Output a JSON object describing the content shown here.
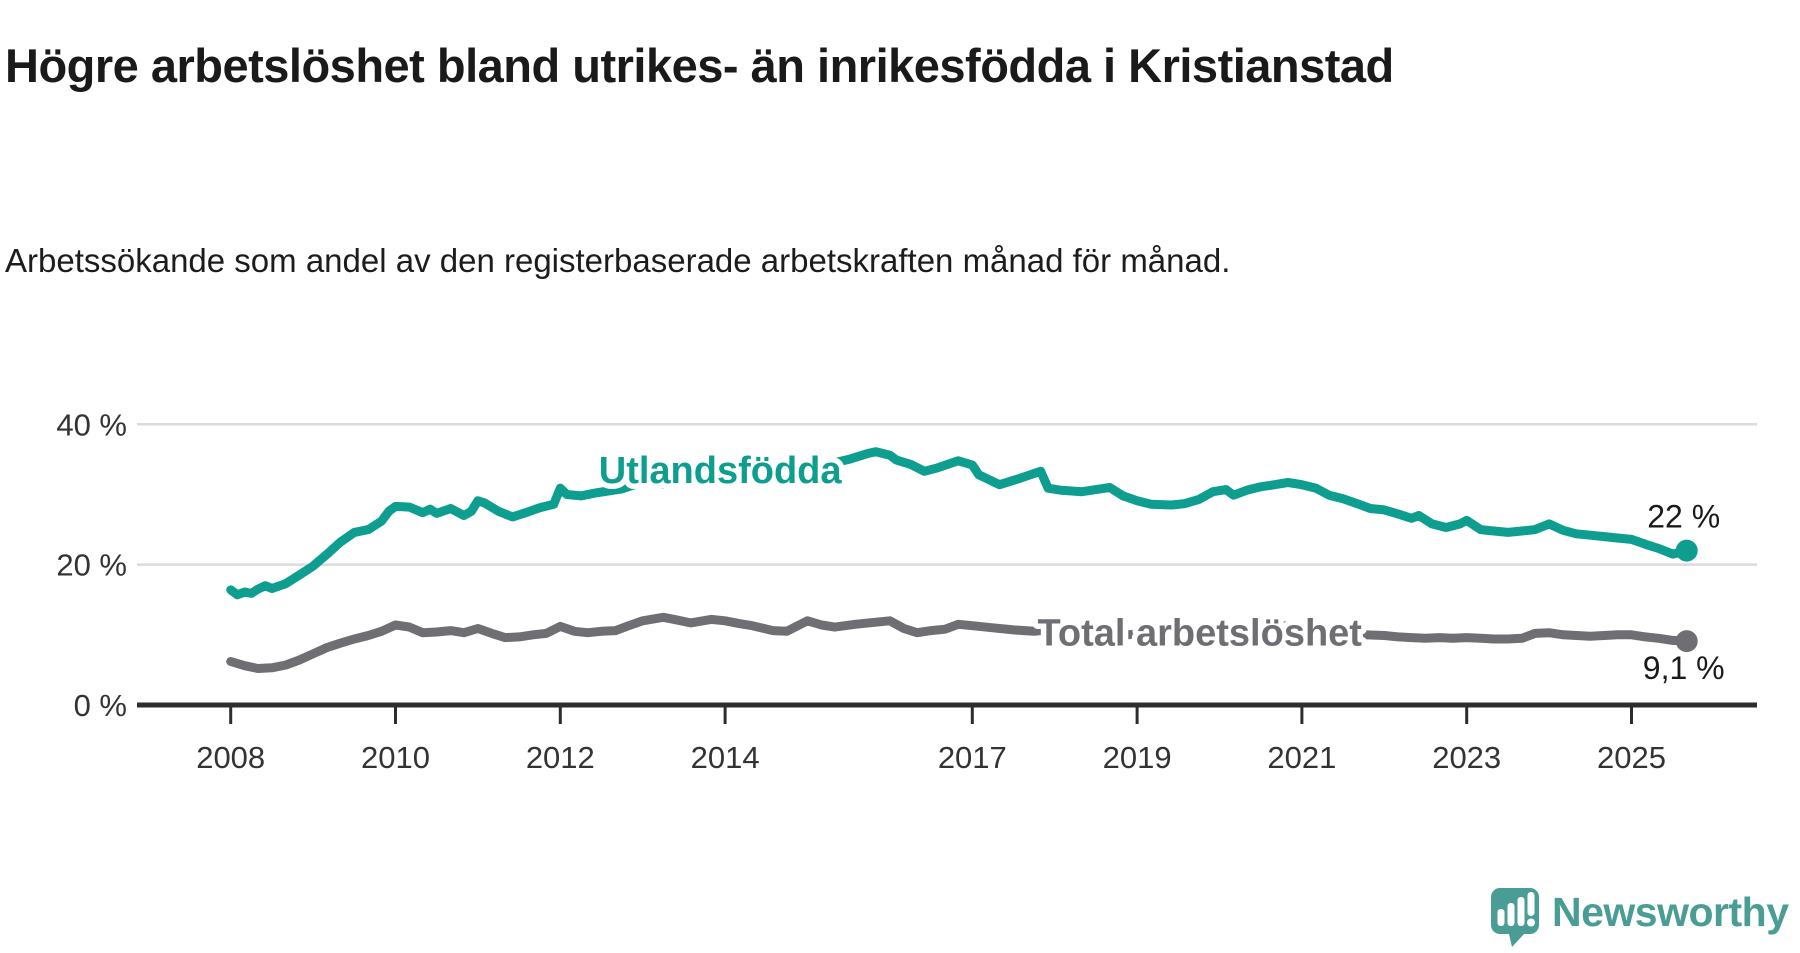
{
  "title": "Högre arbetslöshet bland utrikes- än inrikesfödda i Kristianstad",
  "subtitle": "Arbetssökande som andel av den registerbaserade arbetskraften månad för månad.",
  "colors": {
    "series_foreign": "#0D9E8F",
    "series_total": "#6F6F73",
    "grid": "#DBDBDB",
    "axis": "#2D2D2D",
    "tick_text": "#333333",
    "end_label_text": "#1a1a1a",
    "logo": "#4A9D95"
  },
  "chart_data": {
    "type": "line",
    "title": "Högre arbetslöshet bland utrikes- än inrikesfödda i Kristianstad",
    "subtitle": "Arbetssökande som andel av den registerbaserade arbetskraften månad för månad.",
    "xlabel": "",
    "ylabel": "",
    "unit": "%",
    "grid": "horizontal",
    "legend_position": "inline-labels",
    "xlim": [
      2007.9,
      2026.1
    ],
    "ylim": [
      0,
      43
    ],
    "x_ticks": [
      {
        "v": 2008,
        "label": "2008"
      },
      {
        "v": 2010,
        "label": "2010"
      },
      {
        "v": 2012,
        "label": "2012"
      },
      {
        "v": 2014,
        "label": "2014"
      },
      {
        "v": 2017,
        "label": "2017"
      },
      {
        "v": 2019,
        "label": "2019"
      },
      {
        "v": 2021,
        "label": "2021"
      },
      {
        "v": 2023,
        "label": "2023"
      },
      {
        "v": 2025,
        "label": "2025"
      }
    ],
    "y_ticks": [
      {
        "v": 40,
        "label": "40 %"
      },
      {
        "v": 20,
        "label": "20 %"
      },
      {
        "v": 0,
        "label": "0 %"
      }
    ],
    "series": [
      {
        "name": "Utlandsfödda",
        "color": "#0D9E8F",
        "end_label": "22 %",
        "end_value": 22,
        "x": [
          2008.0,
          2008.08,
          2008.17,
          2008.25,
          2008.33,
          2008.42,
          2008.5,
          2008.67,
          2008.83,
          2009.0,
          2009.17,
          2009.33,
          2009.5,
          2009.67,
          2009.83,
          2009.92,
          2010.0,
          2010.17,
          2010.33,
          2010.42,
          2010.5,
          2010.67,
          2010.83,
          2010.92,
          2011.0,
          2011.08,
          2011.25,
          2011.42,
          2011.58,
          2011.75,
          2011.92,
          2012.0,
          2012.08,
          2012.25,
          2012.42,
          2012.58,
          2012.75,
          2013.0,
          2013.25,
          2013.5,
          2013.75,
          2014.0,
          2014.25,
          2014.5,
          2014.75,
          2015.0,
          2015.25,
          2015.5,
          2015.75,
          2015.83,
          2016.0,
          2016.08,
          2016.25,
          2016.42,
          2016.58,
          2016.83,
          2017.0,
          2017.08,
          2017.33,
          2017.58,
          2017.83,
          2017.92,
          2018.08,
          2018.33,
          2018.5,
          2018.67,
          2018.83,
          2019.0,
          2019.17,
          2019.42,
          2019.58,
          2019.75,
          2019.92,
          2020.08,
          2020.17,
          2020.33,
          2020.5,
          2020.67,
          2020.83,
          2021.0,
          2021.17,
          2021.33,
          2021.5,
          2021.67,
          2021.83,
          2022.0,
          2022.17,
          2022.33,
          2022.42,
          2022.58,
          2022.75,
          2022.92,
          2023.0,
          2023.17,
          2023.33,
          2023.5,
          2023.67,
          2023.83,
          2024.0,
          2024.17,
          2024.33,
          2024.5,
          2024.67,
          2024.83,
          2025.0,
          2025.17,
          2025.33,
          2025.5,
          2025.67
        ],
        "y": [
          16.4,
          15.7,
          16.1,
          15.9,
          16.5,
          17.0,
          16.6,
          17.3,
          18.5,
          19.8,
          21.5,
          23.2,
          24.6,
          25.0,
          26.2,
          27.6,
          28.3,
          28.2,
          27.4,
          27.9,
          27.3,
          28.0,
          27.0,
          27.6,
          29.1,
          28.8,
          27.6,
          26.8,
          27.4,
          28.1,
          28.6,
          30.9,
          30.0,
          29.8,
          30.2,
          30.5,
          30.8,
          31.8,
          31.5,
          32.2,
          32.7,
          33.6,
          33.1,
          33.4,
          33.9,
          34.6,
          34.3,
          35.0,
          35.9,
          36.1,
          35.6,
          34.9,
          34.3,
          33.3,
          33.8,
          34.8,
          34.2,
          32.8,
          31.4,
          32.3,
          33.3,
          30.9,
          30.6,
          30.4,
          30.7,
          31.0,
          29.8,
          29.1,
          28.6,
          28.5,
          28.7,
          29.3,
          30.4,
          30.7,
          29.9,
          30.6,
          31.1,
          31.4,
          31.7,
          31.4,
          30.9,
          29.9,
          29.4,
          28.7,
          28.0,
          27.8,
          27.2,
          26.6,
          27.0,
          25.8,
          25.3,
          25.8,
          26.3,
          25.0,
          24.8,
          24.6,
          24.8,
          25.0,
          25.8,
          24.9,
          24.4,
          24.2,
          24.0,
          23.8,
          23.6,
          22.9,
          22.3,
          21.5,
          22.0
        ]
      },
      {
        "name": "Total arbetslöshet",
        "color": "#6F6F73",
        "end_label": "9,1 %",
        "end_value": 9.1,
        "x": [
          2008.0,
          2008.17,
          2008.33,
          2008.5,
          2008.67,
          2008.83,
          2009.0,
          2009.17,
          2009.33,
          2009.5,
          2009.67,
          2009.83,
          2010.0,
          2010.17,
          2010.33,
          2010.5,
          2010.67,
          2010.83,
          2011.0,
          2011.17,
          2011.33,
          2011.5,
          2011.67,
          2011.83,
          2012.0,
          2012.17,
          2012.33,
          2012.5,
          2012.67,
          2012.83,
          2013.0,
          2013.25,
          2013.42,
          2013.58,
          2013.83,
          2014.0,
          2014.17,
          2014.33,
          2014.58,
          2014.75,
          2015.0,
          2015.17,
          2015.33,
          2015.58,
          2015.83,
          2016.0,
          2016.17,
          2016.33,
          2016.5,
          2016.67,
          2016.83,
          2017.0,
          2017.25,
          2017.5,
          2017.75,
          2018.0,
          2018.25,
          2018.5,
          2018.75,
          2019.0,
          2019.25,
          2019.5,
          2019.75,
          2020.0,
          2020.25,
          2020.5,
          2020.75,
          2021.0,
          2021.25,
          2021.5,
          2021.75,
          2022.0,
          2022.17,
          2022.33,
          2022.5,
          2022.67,
          2022.83,
          2023.0,
          2023.17,
          2023.33,
          2023.5,
          2023.67,
          2023.83,
          2024.0,
          2024.17,
          2024.33,
          2024.5,
          2024.67,
          2024.83,
          2025.0,
          2025.17,
          2025.33,
          2025.5,
          2025.67
        ],
        "y": [
          6.2,
          5.6,
          5.2,
          5.3,
          5.7,
          6.4,
          7.3,
          8.2,
          8.8,
          9.4,
          9.9,
          10.5,
          11.4,
          11.1,
          10.3,
          10.4,
          10.6,
          10.3,
          10.9,
          10.2,
          9.6,
          9.7,
          10.0,
          10.2,
          11.2,
          10.5,
          10.3,
          10.5,
          10.6,
          11.3,
          12.0,
          12.5,
          12.1,
          11.7,
          12.2,
          12.0,
          11.6,
          11.3,
          10.6,
          10.5,
          12.0,
          11.4,
          11.1,
          11.5,
          11.8,
          12.0,
          10.9,
          10.3,
          10.6,
          10.8,
          11.5,
          11.3,
          11.0,
          10.7,
          10.5,
          10.8,
          10.3,
          10.0,
          9.9,
          10.1,
          9.8,
          9.7,
          10.0,
          10.3,
          10.8,
          11.2,
          11.3,
          11.2,
          10.8,
          10.4,
          10.0,
          9.9,
          9.7,
          9.6,
          9.5,
          9.6,
          9.5,
          9.6,
          9.5,
          9.4,
          9.4,
          9.5,
          10.2,
          10.3,
          10.0,
          9.9,
          9.8,
          9.9,
          10.0,
          10.0,
          9.7,
          9.5,
          9.2,
          9.1
        ]
      }
    ],
    "series_labels": [
      {
        "text": "Utlandsfödda",
        "x": 2013.94,
        "y": 33.5,
        "color": "#0D9E8F"
      },
      {
        "text": "Total arbetslöshet",
        "x": 2019.76,
        "y": 10.3,
        "color": "#6F6F73"
      }
    ]
  },
  "logo": {
    "text": "Newsworthy",
    "icon": "newsworthy-speech-bubble-chart-icon"
  }
}
